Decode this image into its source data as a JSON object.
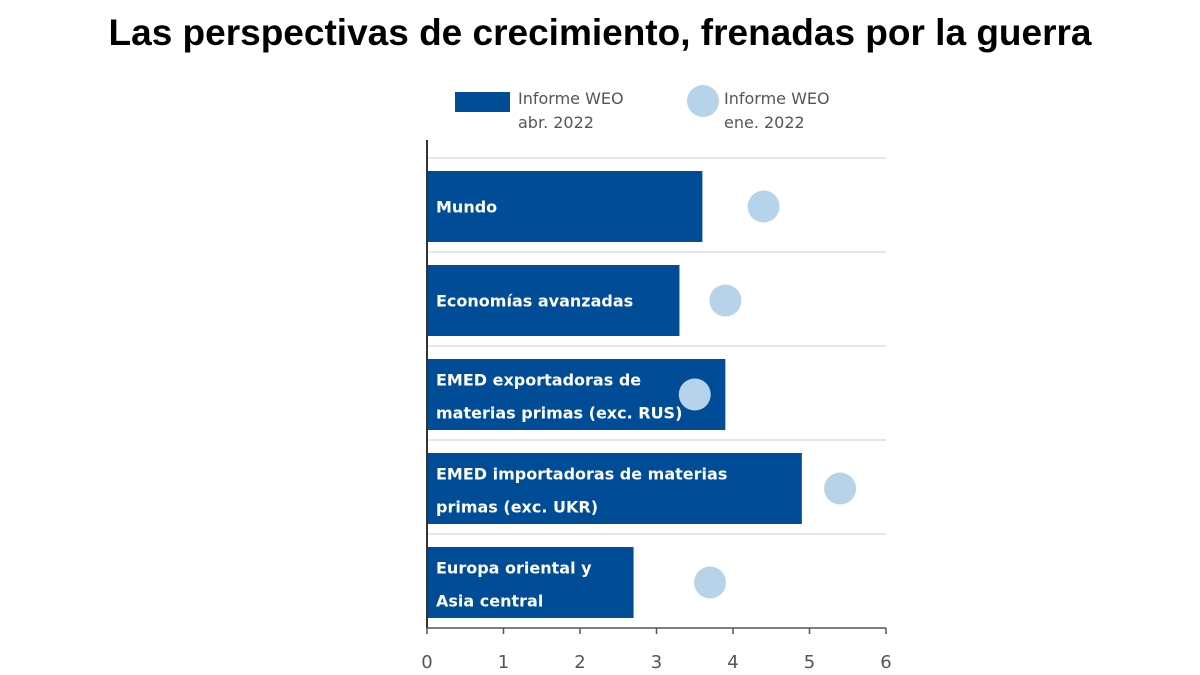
{
  "chart_data": {
    "type": "bar",
    "orientation": "horizontal",
    "title": "Las perspectivas de crecimiento, frenadas por la guerra",
    "categories": [
      [
        "Mundo"
      ],
      [
        "Economías avanzadas"
      ],
      [
        "EMED exportadoras de",
        "materias primas (exc. RUS)"
      ],
      [
        "EMED importadoras de materias",
        "primas (exc. UKR)"
      ],
      [
        "Europa oriental y",
        "Asia central"
      ]
    ],
    "series": [
      {
        "name": "Informe WEO abr. 2022",
        "legend_lines": [
          "Informe WEO",
          "abr. 2022"
        ],
        "mark": "bar",
        "color": "#004C97",
        "values": [
          3.6,
          3.3,
          3.9,
          4.9,
          2.7
        ]
      },
      {
        "name": "Informe WEO ene. 2022",
        "legend_lines": [
          "Informe WEO",
          "ene. 2022"
        ],
        "mark": "circle",
        "color": "#B7D3E9",
        "values": [
          4.4,
          3.9,
          3.5,
          5.4,
          3.7
        ]
      }
    ],
    "xlim": [
      0,
      6
    ],
    "xticks": [
      "0",
      "1",
      "2",
      "3",
      "4",
      "5",
      "6"
    ],
    "grid": true,
    "legend_position": "top"
  }
}
